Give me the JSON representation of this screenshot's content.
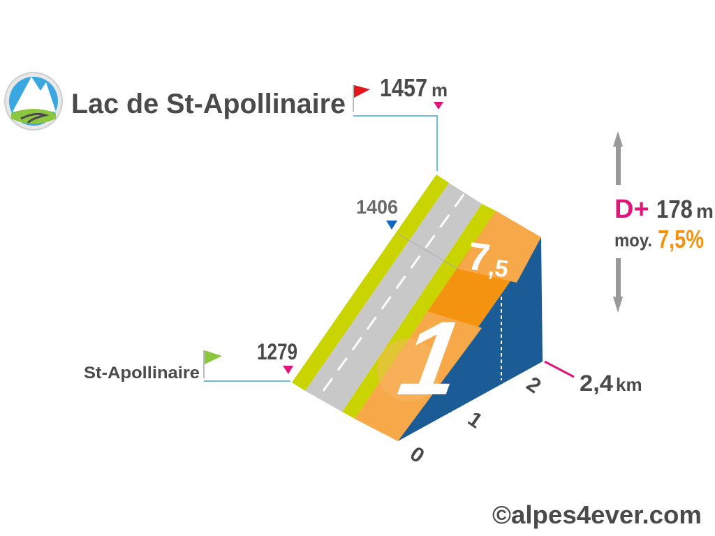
{
  "header": {
    "title": "Lac de St-Apollinaire"
  },
  "summit": {
    "altitude": "1457",
    "unit": "m"
  },
  "waypoint": {
    "altitude": "1406"
  },
  "start": {
    "name": "St-Apollinaire",
    "altitude": "1279"
  },
  "stats": {
    "gain_label": "D+",
    "gain": "178",
    "gain_unit": "m",
    "avg_label": "moy.",
    "avg": "7,5%"
  },
  "segments": [
    {
      "grade": "1"
    },
    {
      "grade": "7",
      "grade_decimal": ",5"
    }
  ],
  "distance": {
    "value": "2,4",
    "unit": "km"
  },
  "km_ticks": [
    "0",
    "1",
    "2"
  ],
  "credit": "©alpes4ever.com"
}
